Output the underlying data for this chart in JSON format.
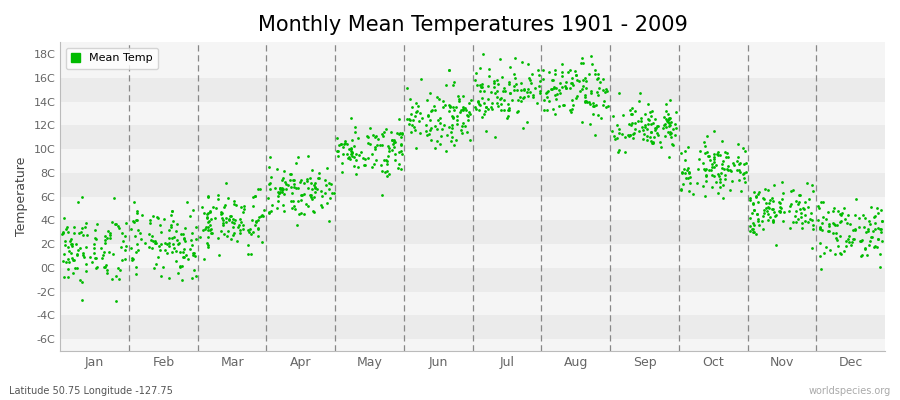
{
  "title": "Monthly Mean Temperatures 1901 - 2009",
  "ylabel": "Temperature",
  "xlabel_labels": [
    "Jan",
    "Feb",
    "Mar",
    "Apr",
    "May",
    "Jun",
    "Jul",
    "Aug",
    "Sep",
    "Oct",
    "Nov",
    "Dec"
  ],
  "ytick_labels": [
    "-6C",
    "-4C",
    "-2C",
    "0C",
    "2C",
    "4C",
    "6C",
    "8C",
    "10C",
    "12C",
    "14C",
    "16C",
    "18C"
  ],
  "ytick_values": [
    -6,
    -4,
    -2,
    0,
    2,
    4,
    6,
    8,
    10,
    12,
    14,
    16,
    18
  ],
  "ylim": [
    -7.0,
    19.0
  ],
  "dot_color": "#00bb00",
  "dot_size": 4,
  "figure_bg": "#ffffff",
  "plot_bg": "#f5f5f5",
  "legend_label": "Mean Temp",
  "footnote_left": "Latitude 50.75 Longitude -127.75",
  "footnote_right": "worldspecies.org",
  "title_fontsize": 15,
  "monthly_means": [
    1.5,
    2.0,
    4.0,
    6.5,
    10.0,
    12.8,
    14.8,
    14.8,
    11.8,
    8.5,
    4.8,
    3.2
  ],
  "monthly_stds": [
    1.6,
    1.5,
    1.3,
    1.1,
    1.1,
    1.3,
    1.3,
    1.3,
    1.1,
    1.1,
    1.1,
    1.3
  ],
  "years": 109,
  "seed": 42
}
